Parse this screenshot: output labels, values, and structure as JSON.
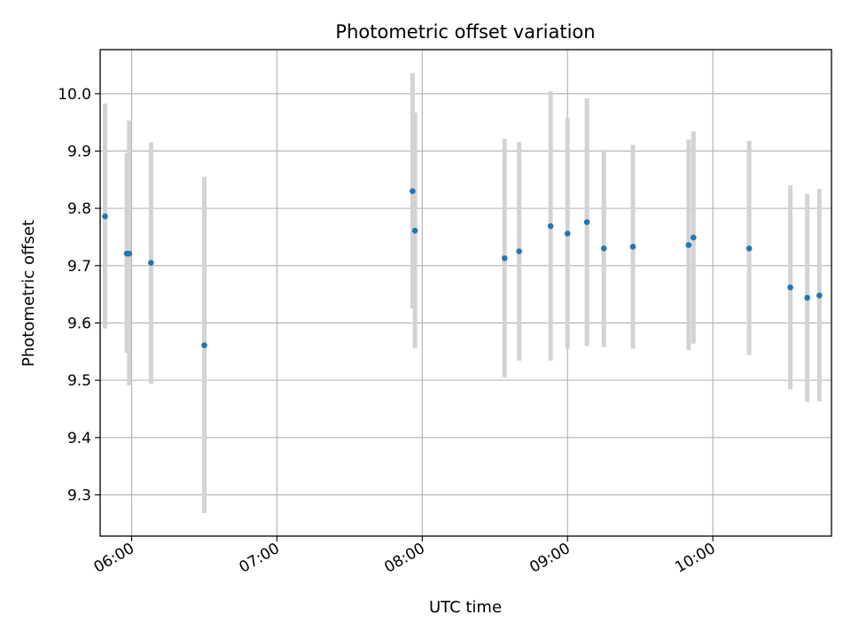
{
  "chart_data": {
    "type": "scatter",
    "title": "Photometric offset variation",
    "xlabel": "UTC time",
    "ylabel": "Photometric offset",
    "xlim": [
      "05:47",
      "10:49"
    ],
    "ylim": [
      9.228,
      10.077
    ],
    "x_ticks": [
      "06:00",
      "07:00",
      "08:00",
      "09:00",
      "10:00"
    ],
    "y_ticks": [
      "9.3",
      "9.4",
      "9.5",
      "9.6",
      "9.7",
      "9.8",
      "9.9",
      "10.0"
    ],
    "grid": true,
    "colors": {
      "point": "#1f77b4",
      "errorbar": "#d3d3d3",
      "grid": "#b0b0b0"
    },
    "points": [
      {
        "x": "05:49",
        "y": 9.786,
        "lo": 9.59,
        "hi": 9.983
      },
      {
        "x": "05:58",
        "y": 9.721,
        "lo": 9.548,
        "hi": 9.897
      },
      {
        "x": "05:59",
        "y": 9.721,
        "lo": 9.491,
        "hi": 9.953
      },
      {
        "x": "06:08",
        "y": 9.705,
        "lo": 9.494,
        "hi": 9.915
      },
      {
        "x": "06:30",
        "y": 9.561,
        "lo": 9.268,
        "hi": 9.855
      },
      {
        "x": "07:56",
        "y": 9.83,
        "lo": 9.625,
        "hi": 10.036
      },
      {
        "x": "07:57",
        "y": 9.761,
        "lo": 9.556,
        "hi": 9.967
      },
      {
        "x": "08:34",
        "y": 9.713,
        "lo": 9.505,
        "hi": 9.921
      },
      {
        "x": "08:40",
        "y": 9.725,
        "lo": 9.534,
        "hi": 9.916
      },
      {
        "x": "08:53",
        "y": 9.769,
        "lo": 9.534,
        "hi": 10.004
      },
      {
        "x": "09:00",
        "y": 9.756,
        "lo": 9.555,
        "hi": 9.958
      },
      {
        "x": "09:08",
        "y": 9.776,
        "lo": 9.56,
        "hi": 9.992
      },
      {
        "x": "09:15",
        "y": 9.73,
        "lo": 9.558,
        "hi": 9.902
      },
      {
        "x": "09:27",
        "y": 9.733,
        "lo": 9.555,
        "hi": 9.911
      },
      {
        "x": "09:50",
        "y": 9.736,
        "lo": 9.553,
        "hi": 9.92
      },
      {
        "x": "09:52",
        "y": 9.749,
        "lo": 9.564,
        "hi": 9.934
      },
      {
        "x": "10:15",
        "y": 9.73,
        "lo": 9.544,
        "hi": 9.918
      },
      {
        "x": "10:32",
        "y": 9.662,
        "lo": 9.484,
        "hi": 9.84
      },
      {
        "x": "10:39",
        "y": 9.644,
        "lo": 9.462,
        "hi": 9.825
      },
      {
        "x": "10:44",
        "y": 9.648,
        "lo": 9.463,
        "hi": 9.834
      }
    ]
  }
}
